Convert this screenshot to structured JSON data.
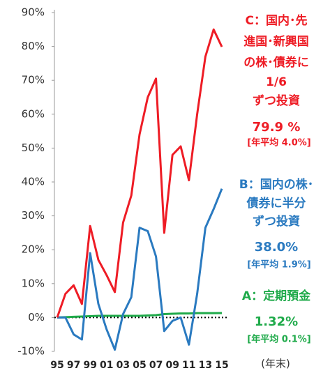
{
  "chart_data": {
    "type": "line",
    "categories": [
      "95",
      null,
      "97",
      null,
      "99",
      null,
      "01",
      null,
      "03",
      null,
      "05",
      null,
      "07",
      null,
      "09",
      null,
      "11",
      null,
      "13",
      null,
      "15"
    ],
    "x_label": "(年末)",
    "ylim": [
      -10,
      90
    ],
    "yticks": [
      {
        "value": -10,
        "label": "-10%"
      },
      {
        "value": 0,
        "label": "0%"
      },
      {
        "value": 10,
        "label": "10%"
      },
      {
        "value": 20,
        "label": "20%"
      },
      {
        "value": 30,
        "label": "30%"
      },
      {
        "value": 40,
        "label": "40%"
      },
      {
        "value": 50,
        "label": "50%"
      },
      {
        "value": 60,
        "label": "60%"
      },
      {
        "value": 70,
        "label": "70%"
      },
      {
        "value": 80,
        "label": "80%"
      },
      {
        "value": 90,
        "label": "90%"
      }
    ],
    "zero_line": true,
    "series": [
      {
        "name": [
          "C：国内･先",
          "進国･新興国",
          "の株･債券に",
          "1/6",
          "ずつ投資"
        ],
        "color": "#ee1c25",
        "values": [
          0,
          7,
          9.5,
          4,
          27,
          17,
          12.5,
          7.5,
          28,
          36,
          54,
          65,
          70.5,
          25,
          48,
          50.5,
          40.5,
          60,
          77,
          85,
          79.9
        ],
        "end_label": "79.9 %",
        "annual": "[年平均 4.0%]"
      },
      {
        "name": [
          "B：国内の株･",
          "債券に半分",
          "ずつ投資"
        ],
        "color": "#2a7ac0",
        "values": [
          0,
          0,
          -5,
          -6.5,
          19,
          4,
          -3.5,
          -9.5,
          1,
          6,
          26.5,
          25.5,
          18,
          -4,
          -1,
          0,
          -8,
          7,
          26.5,
          32,
          38.0
        ],
        "end_label": "38.0%",
        "annual": "[年平均 1.9%]"
      },
      {
        "name": [
          "A：定期預金"
        ],
        "color": "#1faa4a",
        "values": [
          0,
          0.1,
          0.2,
          0.3,
          0.4,
          0.5,
          0.5,
          0.5,
          0.5,
          0.5,
          0.5,
          0.6,
          0.7,
          1.0,
          1.1,
          1.2,
          1.2,
          1.3,
          1.3,
          1.3,
          1.32
        ],
        "end_label": "1.32%",
        "annual": "[年平均 0.1%]"
      }
    ]
  }
}
